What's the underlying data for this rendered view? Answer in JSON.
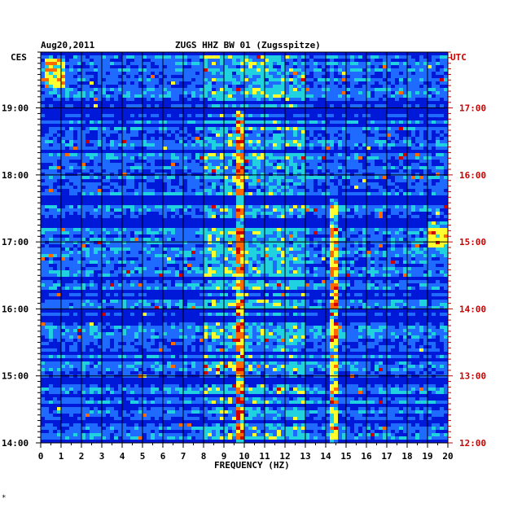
{
  "header": {
    "date": "Aug20,2011",
    "station": "ZUGS HHZ BW 01 (Zugsspitze)"
  },
  "corner_marks": {
    "left_timezone": "CES",
    "right_timezone": "UTC",
    "footer_mark": "*"
  },
  "chart_data": {
    "type": "heatmap",
    "title": "ZUGS HHZ BW 01 (Zugsspitze)",
    "xlabel": "FREQUENCY (HZ)",
    "ylabel_left": "CES",
    "ylabel_right": "UTC",
    "x_range": [
      0,
      20
    ],
    "x_ticks": [
      "0",
      "1",
      "2",
      "3",
      "4",
      "5",
      "6",
      "7",
      "8",
      "9",
      "10",
      "11",
      "12",
      "13",
      "14",
      "15",
      "16",
      "17",
      "18",
      "19",
      "20"
    ],
    "y_ticks_left": [
      "19:00",
      "18:00",
      "17:00",
      "16:00",
      "15:00",
      "14:00"
    ],
    "y_ticks_right": [
      "17:00",
      "16:00",
      "15:00",
      "14:00",
      "13:00",
      "12:00"
    ],
    "colormap": [
      "#00007a",
      "#0018d8",
      "#1f6bff",
      "#20d2e0",
      "#ffff30",
      "#ff6a00",
      "#d00000"
    ],
    "grid": true,
    "features": [
      {
        "description": "strong low-frequency energy band",
        "freq_hz": [
          0.2,
          1.2
        ],
        "time_ces": "19:20-19:45"
      },
      {
        "description": "persistent narrow line near 10 Hz",
        "freq_hz": [
          9.6,
          10.0
        ],
        "time_ces": "14:00-19:00"
      },
      {
        "description": "persistent narrow line near 14.4 Hz",
        "freq_hz": [
          14.2,
          14.5
        ],
        "time_ces": "14:00-17:40"
      },
      {
        "description": "high-frequency burst",
        "freq_hz": [
          19.0,
          20.0
        ],
        "time_ces": "16:55-17:20"
      }
    ]
  },
  "colors": {
    "axis": "#000000",
    "utc_labels": "#cc0000",
    "background": "#ffffff"
  }
}
